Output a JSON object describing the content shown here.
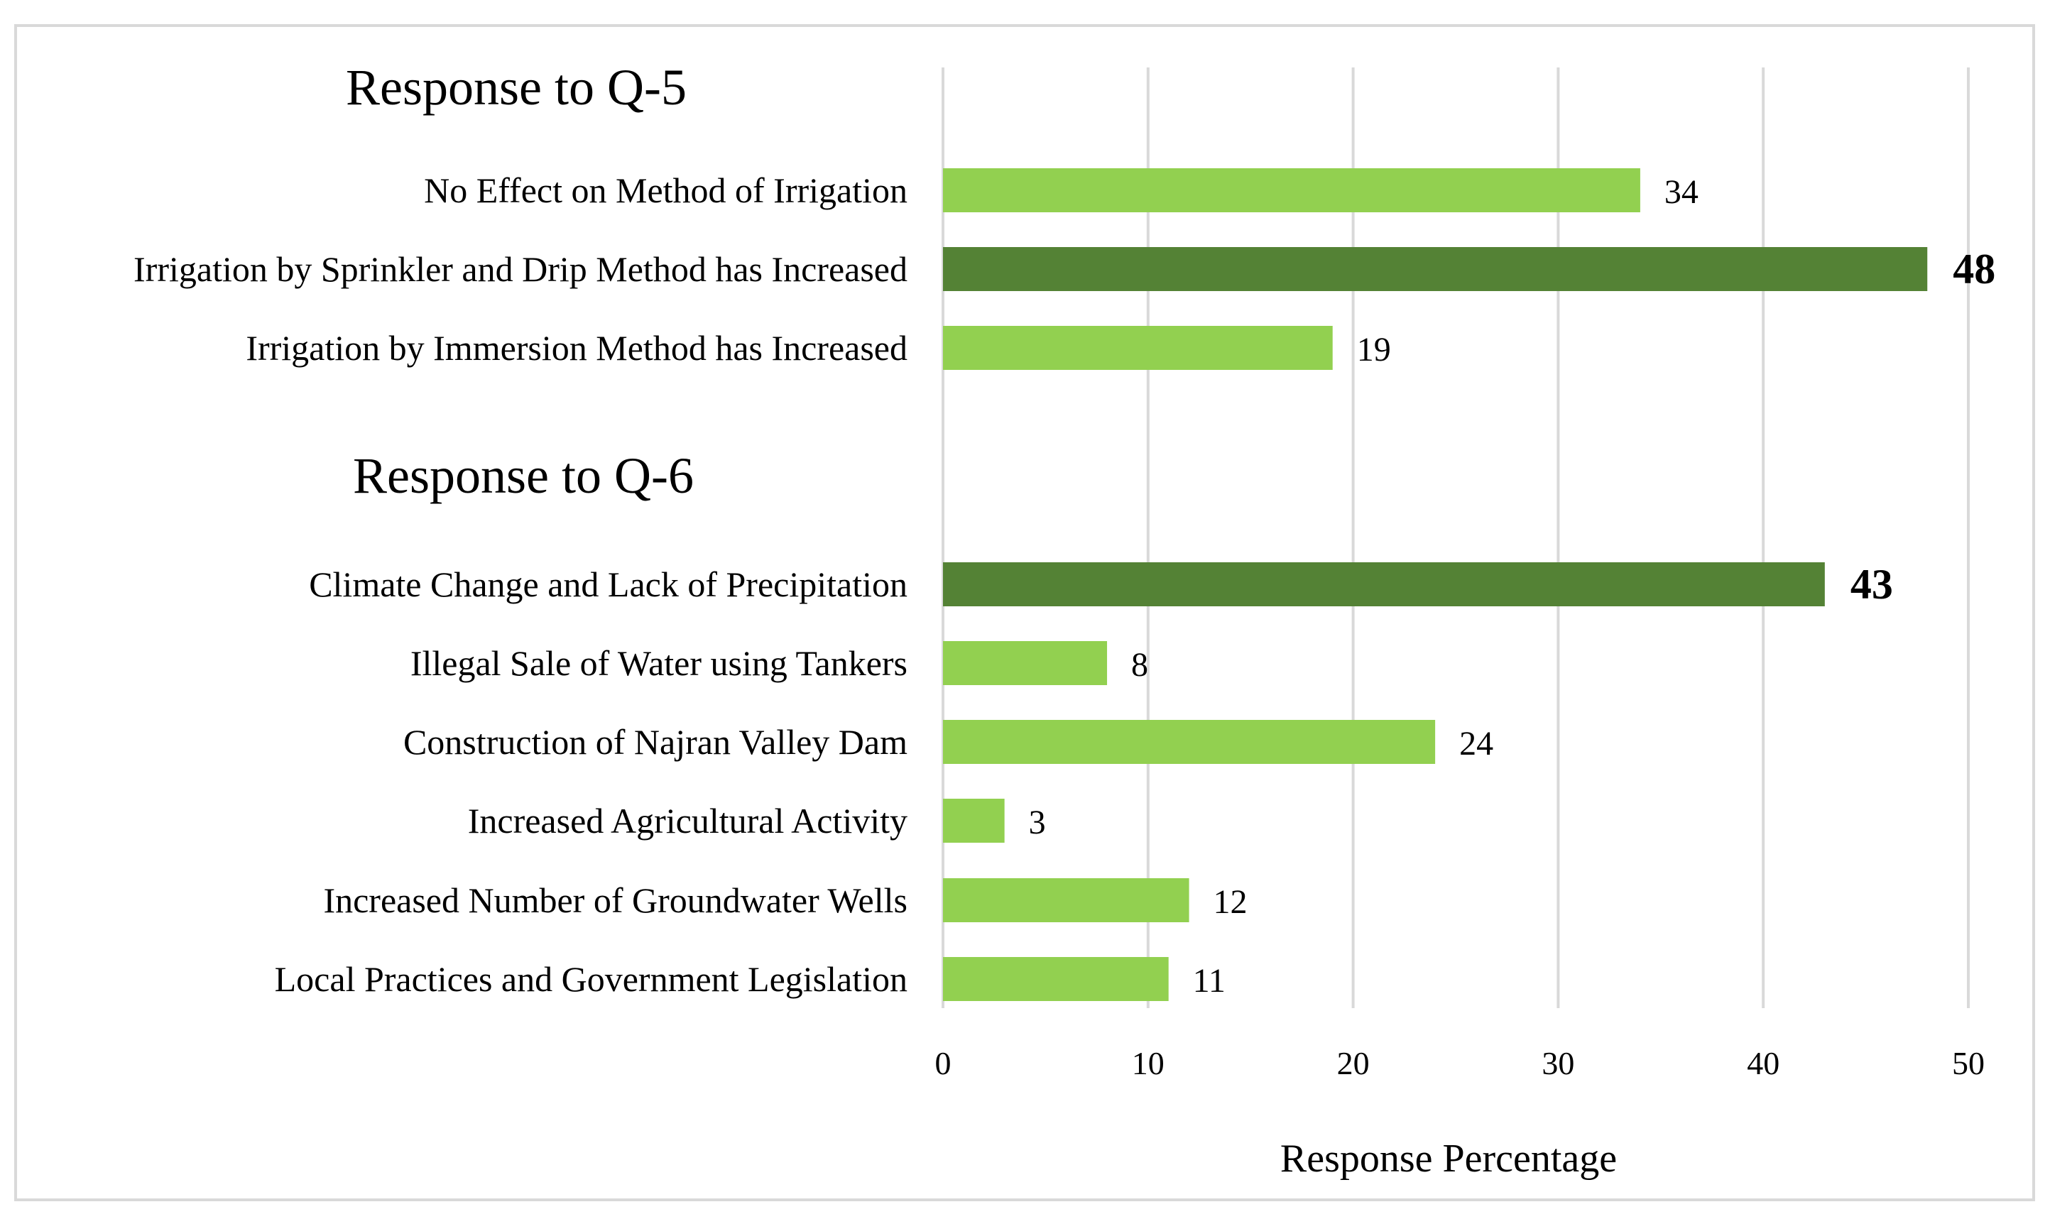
{
  "chart_data": {
    "type": "bar",
    "orientation": "horizontal",
    "xlabel": "Response Percentage",
    "xlim": [
      0,
      50
    ],
    "xticks": [
      0,
      10,
      20,
      30,
      40,
      50
    ],
    "grid": true,
    "colors": {
      "normal": "#92d050",
      "highlight": "#548235",
      "grid": "#d9d9d9"
    },
    "sections": [
      {
        "title": "Response to Q-5",
        "bars": [
          {
            "label": "No Effect on Method of Irrigation",
            "value": 34,
            "highlight": false
          },
          {
            "label": "Irrigation by Sprinkler and Drip Method has Increased",
            "value": 48,
            "highlight": true
          },
          {
            "label": "Irrigation by Immersion Method has Increased",
            "value": 19,
            "highlight": false
          }
        ]
      },
      {
        "title": "Response to Q-6",
        "bars": [
          {
            "label": "Climate Change and Lack of Precipitation",
            "value": 43,
            "highlight": true
          },
          {
            "label": "Illegal Sale of Water using Tankers",
            "value": 8,
            "highlight": false
          },
          {
            "label": "Construction of Najran Valley Dam",
            "value": 24,
            "highlight": false
          },
          {
            "label": "Increased Agricultural Activity",
            "value": 3,
            "highlight": false
          },
          {
            "label": "Increased Number of Groundwater Wells",
            "value": 12,
            "highlight": false
          },
          {
            "label": "Local Practices and Government Legislation",
            "value": 11,
            "highlight": false
          }
        ]
      }
    ]
  }
}
